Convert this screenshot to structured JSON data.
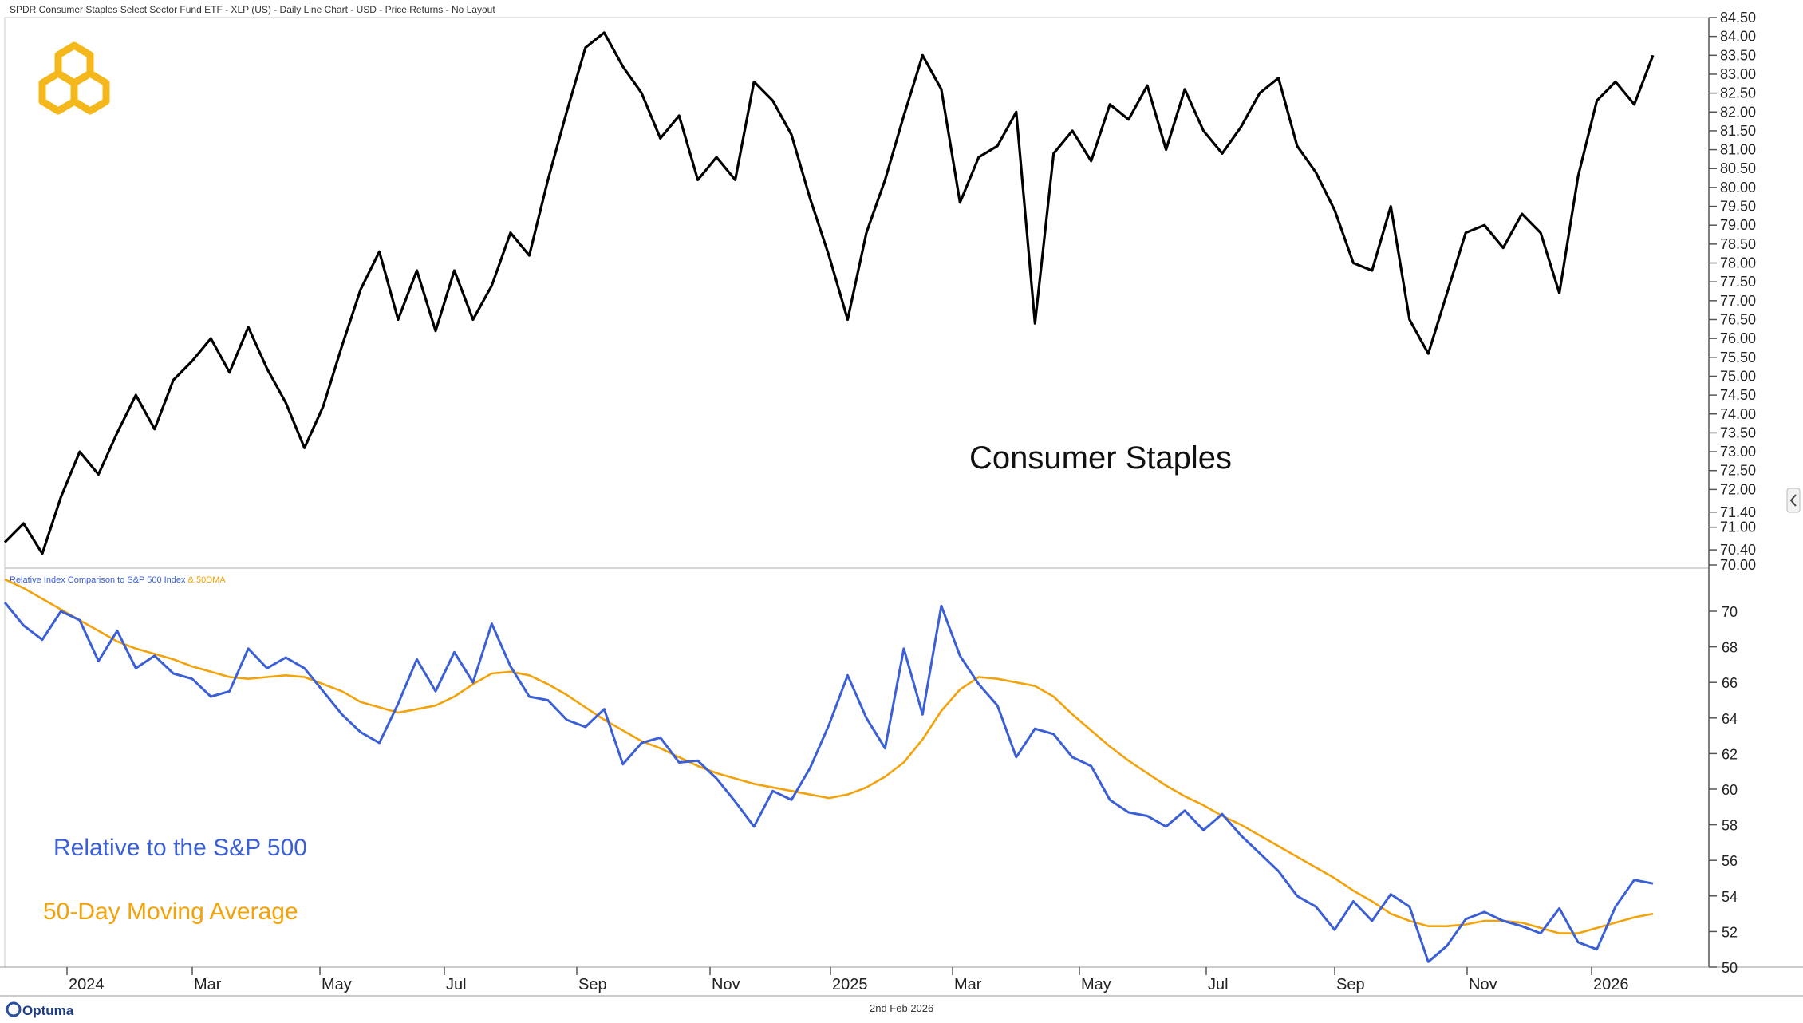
{
  "header": {
    "title": "SPDR Consumer Staples Select Sector Fund ETF - XLP (US) - Daily Line Chart - USD - Price Returns - No Layout"
  },
  "legend": {
    "relative_label": "Relative Index Comparison to S&P 500 Index",
    "ma_label": " & 50DMA"
  },
  "annotations": {
    "top": "Consumer Staples",
    "relative": "Relative to the S&P 500",
    "moving_average": "50-Day Moving Average"
  },
  "footer": {
    "brand": "Optuma",
    "date": "2nd Feb 2026"
  },
  "colors": {
    "price": "#000000",
    "relative": "#3b5fd4",
    "ma": "#f2a20a",
    "logo": "#f4b81c"
  },
  "icons": {
    "logo": "hexagon-logo-icon",
    "collapse": "chevron-left-icon"
  },
  "chart_data": [
    {
      "type": "line",
      "title": "Consumer Staples",
      "series": [
        {
          "name": "XLP Price",
          "values": [
            70.6,
            71.1,
            70.3,
            71.8,
            73.0,
            72.4,
            73.5,
            74.5,
            73.6,
            74.9,
            75.4,
            76.0,
            75.1,
            76.3,
            75.2,
            74.3,
            73.1,
            74.2,
            75.8,
            77.3,
            78.3,
            76.5,
            77.8,
            76.2,
            77.8,
            76.5,
            77.4,
            78.8,
            78.2,
            80.2,
            82.0,
            83.7,
            84.1,
            83.2,
            82.5,
            81.3,
            81.9,
            80.2,
            80.8,
            80.2,
            82.8,
            82.3,
            81.4,
            79.7,
            78.2,
            76.5,
            78.8,
            80.2,
            81.9,
            83.5,
            82.6,
            79.6,
            80.8,
            81.1,
            82.0,
            76.4,
            80.9,
            81.5,
            80.7,
            82.2,
            81.8,
            82.7,
            81.0,
            82.6,
            81.5,
            80.9,
            81.6,
            82.5,
            82.9,
            81.1,
            80.4,
            79.4,
            78.0,
            77.8,
            79.5,
            76.5,
            75.6,
            77.2,
            78.8,
            79.0,
            78.4,
            79.3,
            78.8,
            77.2,
            80.3,
            82.3,
            82.8,
            82.2,
            83.5
          ]
        }
      ],
      "y_axis": {
        "ticks": [
          "70.00",
          "70.40",
          "71.00",
          "71.40",
          "72.00",
          "72.50",
          "73.00",
          "73.50",
          "74.00",
          "74.50",
          "75.00",
          "75.50",
          "76.00",
          "76.50",
          "77.00",
          "77.50",
          "78.00",
          "78.50",
          "79.00",
          "79.50",
          "80.00",
          "80.50",
          "81.00",
          "81.50",
          "82.00",
          "82.50",
          "83.00",
          "83.50",
          "84.00",
          "84.50"
        ],
        "range": [
          70.0,
          84.5
        ]
      },
      "x_axis": {
        "ticks": [
          "2024",
          "Mar",
          "May",
          "Jul",
          "Sep",
          "Nov",
          "2025",
          "Mar",
          "May",
          "Jul",
          "Sep",
          "Nov",
          "2026"
        ]
      }
    },
    {
      "type": "line",
      "title": "Relative Index Comparison to S&P 500 Index & 50DMA",
      "series": [
        {
          "name": "Relative to S&P 500",
          "values": [
            70.5,
            69.2,
            68.4,
            70.0,
            69.5,
            67.2,
            68.9,
            66.8,
            67.5,
            66.5,
            66.2,
            65.2,
            65.5,
            67.9,
            66.8,
            67.4,
            66.8,
            65.5,
            64.2,
            63.2,
            62.6,
            64.8,
            67.3,
            65.5,
            67.7,
            66.0,
            69.3,
            66.9,
            65.2,
            65.0,
            63.9,
            63.5,
            64.5,
            61.4,
            62.6,
            62.9,
            61.5,
            61.6,
            60.6,
            59.3,
            57.9,
            59.9,
            59.4,
            61.2,
            63.6,
            66.4,
            64.0,
            62.3,
            67.9,
            64.2,
            70.3,
            67.5,
            65.9,
            64.7,
            61.8,
            63.4,
            63.1,
            61.8,
            61.3,
            59.4,
            58.7,
            58.5,
            57.9,
            58.8,
            57.7,
            58.6,
            57.4,
            56.4,
            55.4,
            54.0,
            53.4,
            52.1,
            53.7,
            52.6,
            54.1,
            53.4,
            50.3,
            51.2,
            52.7,
            53.1,
            52.6,
            52.3,
            51.9,
            53.3,
            51.4,
            51.0,
            53.4,
            54.9,
            54.7
          ]
        },
        {
          "name": "50-Day Moving Average",
          "values": [
            71.8,
            71.3,
            70.7,
            70.1,
            69.5,
            68.9,
            68.3,
            67.9,
            67.6,
            67.3,
            66.9,
            66.6,
            66.3,
            66.2,
            66.3,
            66.4,
            66.3,
            65.9,
            65.5,
            64.9,
            64.6,
            64.3,
            64.5,
            64.7,
            65.2,
            65.9,
            66.5,
            66.6,
            66.4,
            65.9,
            65.3,
            64.6,
            63.9,
            63.3,
            62.7,
            62.3,
            61.8,
            61.3,
            60.9,
            60.6,
            60.3,
            60.1,
            59.9,
            59.7,
            59.5,
            59.7,
            60.1,
            60.7,
            61.5,
            62.8,
            64.4,
            65.6,
            66.3,
            66.2,
            66.0,
            65.8,
            65.2,
            64.2,
            63.3,
            62.4,
            61.6,
            60.9,
            60.2,
            59.6,
            59.1,
            58.5,
            58.0,
            57.4,
            56.8,
            56.2,
            55.6,
            55.0,
            54.3,
            53.7,
            53.0,
            52.6,
            52.3,
            52.3,
            52.4,
            52.6,
            52.6,
            52.5,
            52.2,
            51.9,
            51.9,
            52.2,
            52.5,
            52.8,
            53.0
          ]
        }
      ],
      "y_axis": {
        "ticks": [
          "50",
          "52",
          "54",
          "56",
          "58",
          "60",
          "62",
          "64",
          "66",
          "68",
          "70"
        ],
        "range": [
          50,
          72
        ]
      },
      "x_axis": {
        "ticks": [
          "2024",
          "Mar",
          "May",
          "Jul",
          "Sep",
          "Nov",
          "2025",
          "Mar",
          "May",
          "Jul",
          "Sep",
          "Nov",
          "2026"
        ]
      }
    }
  ]
}
